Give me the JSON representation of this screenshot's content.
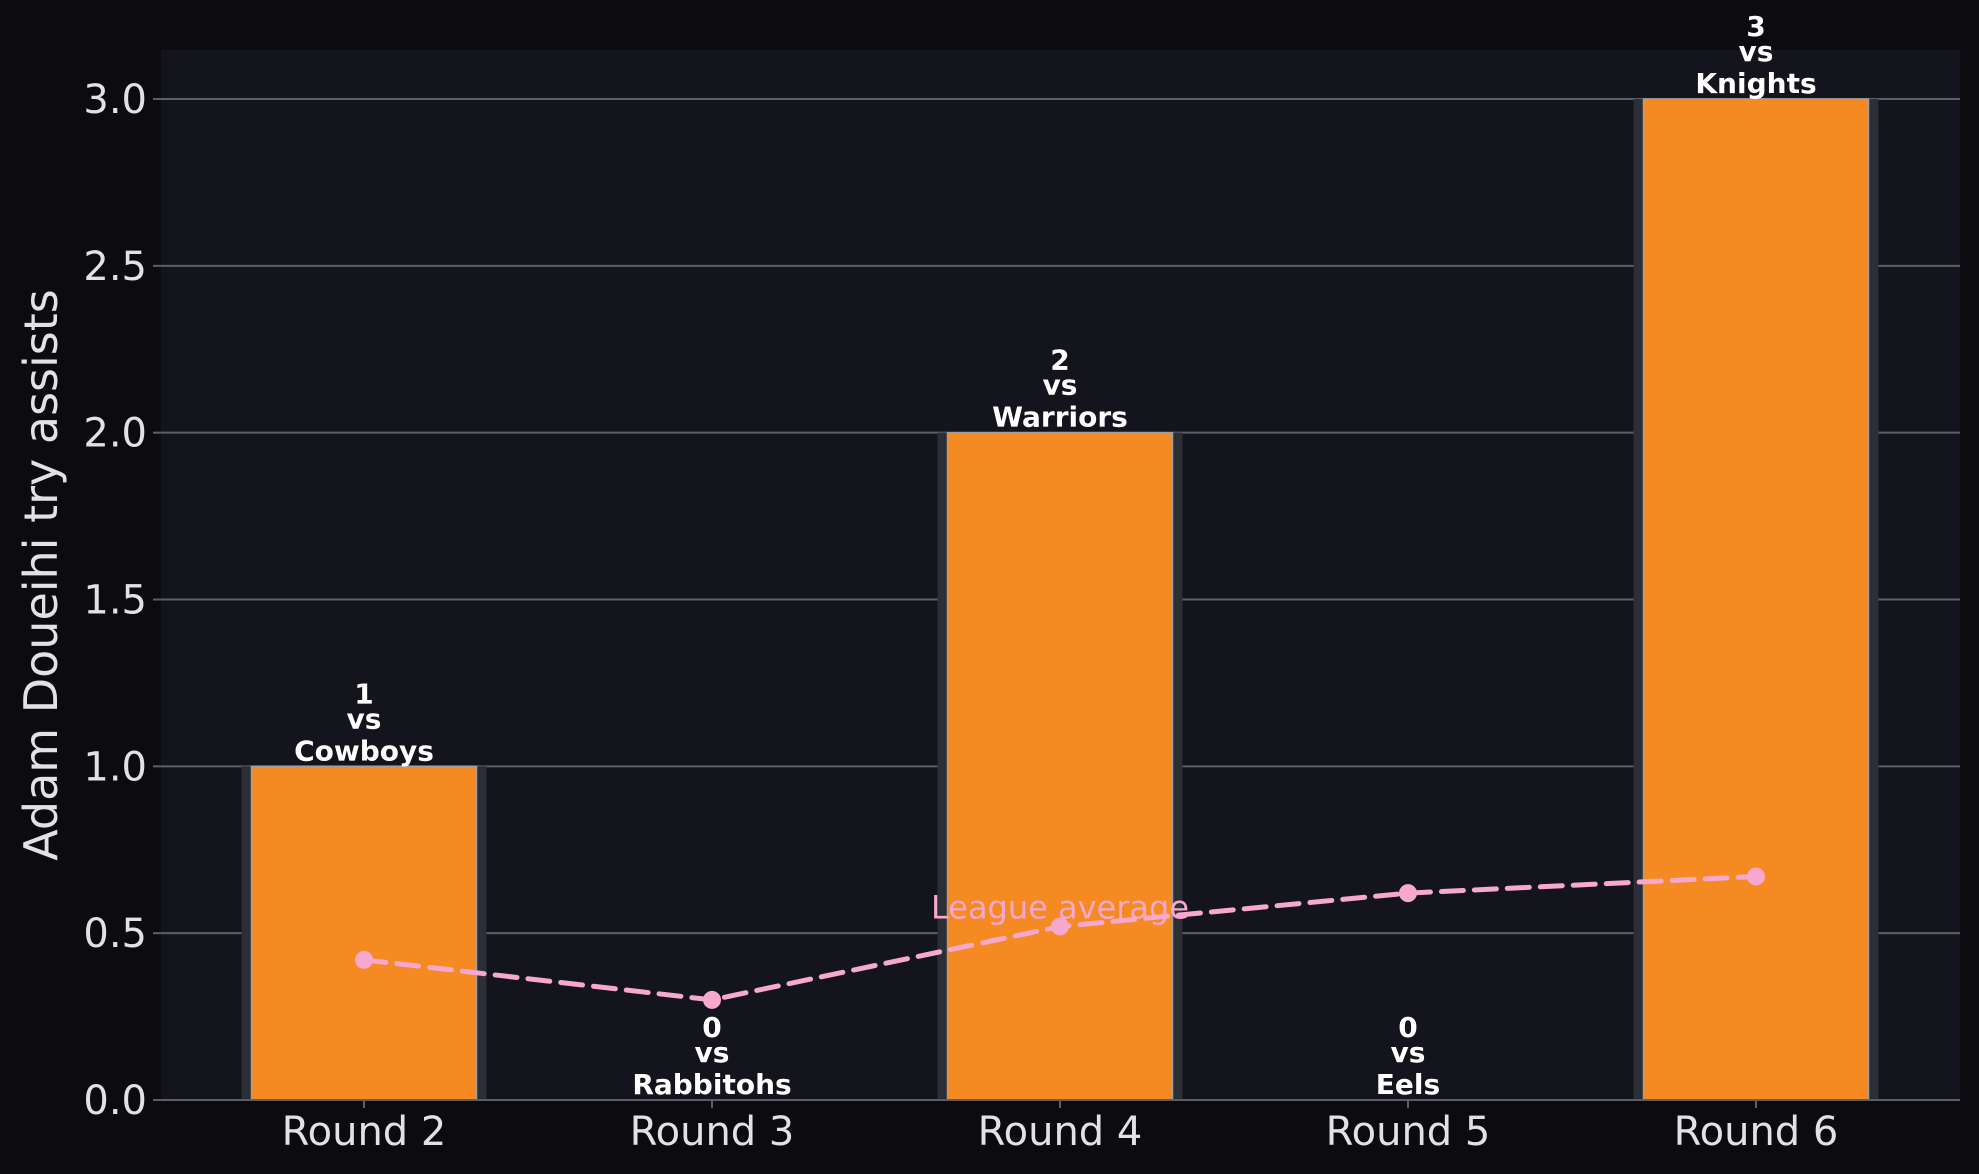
{
  "chart_data": {
    "type": "bar",
    "title": "",
    "xlabel": "",
    "ylabel": "Adam Doueihi try assists",
    "categories": [
      "Round 2",
      "Round 3",
      "Round 4",
      "Round 5",
      "Round 6"
    ],
    "series": [
      {
        "values": [
          1,
          0,
          2,
          0,
          3
        ],
        "opponents": [
          "Cowboys",
          "Rabbitohs",
          "Warriors",
          "Eels",
          "Knights"
        ],
        "connector": "vs",
        "color": "#f48a21"
      },
      {
        "name": "League average",
        "type": "line",
        "style": "dashed",
        "values": [
          0.42,
          0.3,
          0.52,
          0.62,
          0.67
        ],
        "color": "#f7a8cf"
      }
    ],
    "ylim": [
      0,
      3.15
    ],
    "yticks": [
      "0.0",
      "0.5",
      "1.0",
      "1.5",
      "2.0",
      "2.5",
      "3.0"
    ],
    "ytick_values": [
      0,
      0.5,
      1.0,
      1.5,
      2.0,
      2.5,
      3.0
    ],
    "grid": "horizontal",
    "legend": "none"
  },
  "colors": {
    "background": "#0c0c10",
    "plot_background": "#13141c",
    "grid": "#5e5f66",
    "bar_shadow": "#2e2f36",
    "text": "#e2e2e2"
  }
}
